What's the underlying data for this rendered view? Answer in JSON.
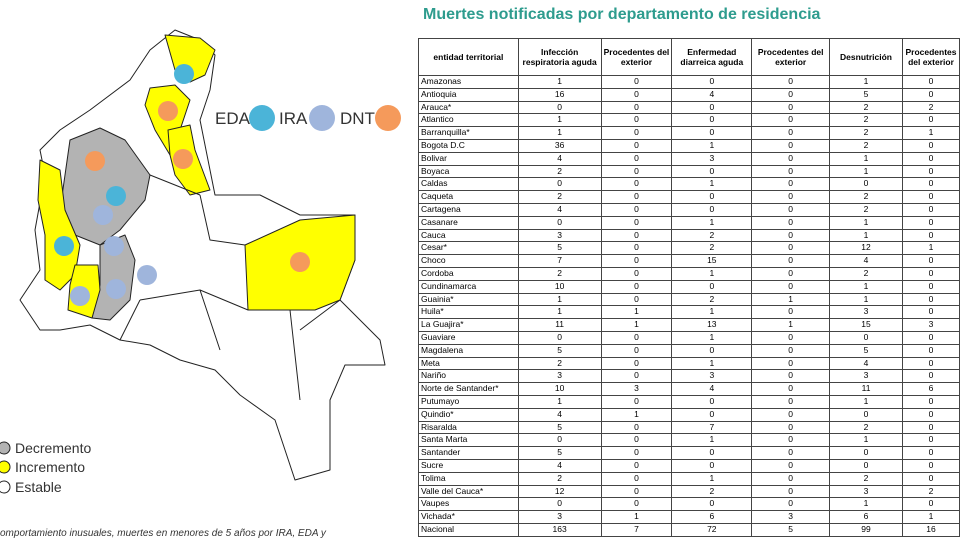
{
  "title": "Muertes notificadas por departamento de residencia",
  "legend": {
    "decrease": "Decremento",
    "increase": "Incremento",
    "stable": "Estable"
  },
  "dot_legend": {
    "eda": "EDA",
    "ira": "IRA",
    "dnt": "DNT"
  },
  "caption": "omportamiento inusuales, muertes en menores de 5 años por IRA, EDA y",
  "table": {
    "headers": [
      "entidad territorial",
      "Infección respiratoria aguda",
      "Procedentes del exterior",
      "Enfermedad diarreica aguda",
      "Procedentes del exterior",
      "Desnutrición",
      "Procedentes del exterior"
    ],
    "rows": [
      [
        "Amazonas",
        1,
        0,
        0,
        0,
        1,
        0
      ],
      [
        "Antioquia",
        16,
        0,
        4,
        0,
        5,
        0
      ],
      [
        "Arauca*",
        0,
        0,
        0,
        0,
        2,
        2
      ],
      [
        "Atlantico",
        1,
        0,
        0,
        0,
        2,
        0
      ],
      [
        "Barranquilla*",
        1,
        0,
        0,
        0,
        2,
        1
      ],
      [
        "Bogota D.C",
        36,
        0,
        1,
        0,
        2,
        0
      ],
      [
        "Bolivar",
        4,
        0,
        3,
        0,
        1,
        0
      ],
      [
        "Boyaca",
        2,
        0,
        0,
        0,
        1,
        0
      ],
      [
        "Caldas",
        0,
        0,
        1,
        0,
        0,
        0
      ],
      [
        "Caqueta",
        2,
        0,
        0,
        0,
        2,
        0
      ],
      [
        "Cartagena",
        4,
        0,
        0,
        0,
        2,
        0
      ],
      [
        "Casanare",
        0,
        0,
        1,
        0,
        1,
        0
      ],
      [
        "Cauca",
        3,
        0,
        2,
        0,
        1,
        0
      ],
      [
        "Cesar*",
        5,
        0,
        2,
        0,
        12,
        1
      ],
      [
        "Choco",
        7,
        0,
        15,
        0,
        4,
        0
      ],
      [
        "Cordoba",
        2,
        0,
        1,
        0,
        2,
        0
      ],
      [
        "Cundinamarca",
        10,
        0,
        0,
        0,
        1,
        0
      ],
      [
        "Guainia*",
        1,
        0,
        2,
        1,
        1,
        0
      ],
      [
        "Huila*",
        1,
        1,
        1,
        0,
        3,
        0
      ],
      [
        "La Guajira*",
        11,
        1,
        13,
        1,
        15,
        3
      ],
      [
        "Guaviare",
        0,
        0,
        1,
        0,
        0,
        0
      ],
      [
        "Magdalena",
        5,
        0,
        0,
        0,
        5,
        0
      ],
      [
        "Meta",
        2,
        0,
        1,
        0,
        4,
        0
      ],
      [
        "Nariño",
        3,
        0,
        3,
        0,
        3,
        0
      ],
      [
        "Norte de Santander*",
        10,
        3,
        4,
        0,
        11,
        6
      ],
      [
        "Putumayo",
        1,
        0,
        0,
        0,
        1,
        0
      ],
      [
        "Quindio*",
        4,
        1,
        0,
        0,
        0,
        0
      ],
      [
        "Risaralda",
        5,
        0,
        7,
        0,
        2,
        0
      ],
      [
        "Santa Marta",
        0,
        0,
        1,
        0,
        1,
        0
      ],
      [
        "Santander",
        5,
        0,
        0,
        0,
        0,
        0
      ],
      [
        "Sucre",
        4,
        0,
        0,
        0,
        0,
        0
      ],
      [
        "Tolima",
        2,
        0,
        1,
        0,
        2,
        0
      ],
      [
        "Valle del Cauca*",
        12,
        0,
        2,
        0,
        3,
        2
      ],
      [
        "Vaupes",
        0,
        0,
        0,
        0,
        1,
        0
      ],
      [
        "Vichada*",
        3,
        1,
        6,
        3,
        6,
        1
      ]
    ],
    "total": [
      "Nacional",
      163,
      7,
      72,
      5,
      99,
      16
    ]
  }
}
